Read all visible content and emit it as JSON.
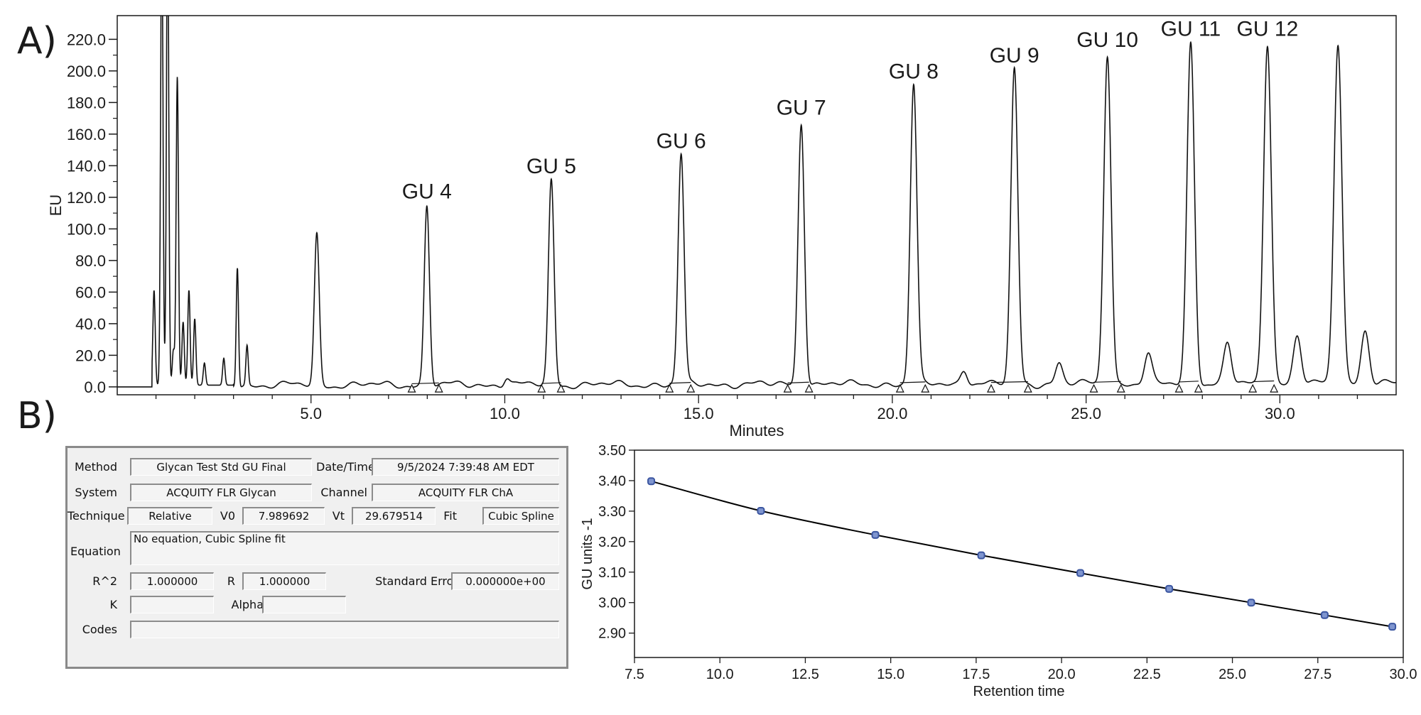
{
  "panels": {
    "a": "A)",
    "b": "B)"
  },
  "chart_data": [
    {
      "type": "line",
      "xlabel": "Minutes",
      "ylabel": "EU",
      "xlim": [
        0,
        33
      ],
      "ylim": [
        -5,
        235
      ],
      "x_ticks": [
        5.0,
        10.0,
        15.0,
        20.0,
        25.0,
        30.0
      ],
      "x_tick_labels": [
        "5.0",
        "10.0",
        "15.0",
        "20.0",
        "25.0",
        "30.0"
      ],
      "y_ticks": [
        0,
        20,
        40,
        60,
        80,
        100,
        120,
        140,
        160,
        180,
        200,
        220
      ],
      "y_tick_labels": [
        "0.0",
        "20.0",
        "40.0",
        "60.0",
        "80.0",
        "100.0",
        "120.0",
        "140.0",
        "160.0",
        "180.0",
        "200.0",
        "220.0"
      ],
      "peaks": [
        {
          "rt": 0.95,
          "height": 60
        },
        {
          "rt": 1.15,
          "height": 300
        },
        {
          "rt": 1.3,
          "height": 300
        },
        {
          "rt": 1.45,
          "height": 22
        },
        {
          "rt": 1.55,
          "height": 195
        },
        {
          "rt": 1.7,
          "height": 40
        },
        {
          "rt": 1.85,
          "height": 60
        },
        {
          "rt": 2.0,
          "height": 42
        },
        {
          "rt": 2.25,
          "height": 14
        },
        {
          "rt": 2.75,
          "height": 17
        },
        {
          "rt": 3.1,
          "height": 76
        },
        {
          "rt": 3.35,
          "height": 25
        },
        {
          "rt": 5.15,
          "height": 95
        },
        {
          "rt": 7.99,
          "height": 113,
          "label": "GU 4"
        },
        {
          "rt": 11.2,
          "height": 129,
          "label": "GU 5"
        },
        {
          "rt": 14.55,
          "height": 145,
          "label": "GU 6"
        },
        {
          "rt": 17.65,
          "height": 166,
          "label": "GU 7"
        },
        {
          "rt": 20.55,
          "height": 189,
          "label": "GU 8"
        },
        {
          "rt": 23.15,
          "height": 199,
          "label": "GU 9"
        },
        {
          "rt": 25.55,
          "height": 209,
          "label": "GU 10"
        },
        {
          "rt": 27.7,
          "height": 216,
          "label": "GU 11"
        },
        {
          "rt": 29.68,
          "height": 216,
          "label": "GU 12"
        },
        {
          "rt": 31.5,
          "height": 216
        },
        {
          "rt": 26.6,
          "height": 18
        },
        {
          "rt": 28.65,
          "height": 25
        },
        {
          "rt": 30.45,
          "height": 30
        },
        {
          "rt": 32.2,
          "height": 34
        },
        {
          "rt": 24.3,
          "height": 13
        },
        {
          "rt": 21.85,
          "height": 10
        },
        {
          "rt": 10.05,
          "height": 5
        }
      ],
      "baseline_markers": [
        7.6,
        8.3,
        10.95,
        11.45,
        14.25,
        14.8,
        17.3,
        17.85,
        20.2,
        20.85,
        22.55,
        23.5,
        25.2,
        25.9,
        27.4,
        27.9,
        29.3,
        29.85
      ]
    },
    {
      "type": "line",
      "xlabel": "Retention time",
      "ylabel": "GU units -1",
      "xlim": [
        7.5,
        30.0
      ],
      "ylim": [
        2.82,
        3.5
      ],
      "x_ticks": [
        7.5,
        10.0,
        12.5,
        15.0,
        17.5,
        20.0,
        22.5,
        25.0,
        27.5,
        30.0
      ],
      "x_tick_labels": [
        "7.5",
        "10.0",
        "12.5",
        "15.0",
        "17.5",
        "20.0",
        "22.5",
        "25.0",
        "27.5",
        "30.0"
      ],
      "y_ticks": [
        2.9,
        3.0,
        3.1,
        3.2,
        3.3,
        3.4,
        3.5
      ],
      "y_tick_labels": [
        "2.90",
        "3.00",
        "3.10",
        "3.20",
        "3.30",
        "3.40",
        "3.50"
      ],
      "series": [
        {
          "x": [
            7.99,
            11.2,
            14.55,
            17.65,
            20.55,
            23.15,
            25.55,
            27.7,
            29.68
          ],
          "y": [
            3.398,
            3.301,
            3.222,
            3.155,
            3.097,
            3.045,
            3.0,
            2.959,
            2.921
          ]
        }
      ],
      "colors": {
        "line": "#000000",
        "marker": "#3a55a0"
      }
    }
  ],
  "info": {
    "method_label": "Method",
    "method_value": "Glycan Test Std GU Final",
    "datetime_label": "Date/Time",
    "datetime_value": "9/5/2024 7:39:48 AM EDT",
    "system_label": "System",
    "system_value": "ACQUITY FLR Glycan",
    "channel_label": "Channel",
    "channel_value": "ACQUITY FLR ChA",
    "technique_label": "Technique",
    "technique_value": "Relative",
    "v0_label": "V0",
    "v0_value": "7.989692",
    "vt_label": "Vt",
    "vt_value": "29.679514",
    "fit_label": "Fit",
    "fit_value": "Cubic Spline",
    "equation_label": "Equation",
    "equation_value": "No equation, Cubic Spline fit",
    "r2_label": "R^2",
    "r2_value": "1.000000",
    "r_label": "R",
    "r_value": "1.000000",
    "stderr_label": "Standard Error",
    "stderr_value": "0.000000e+00",
    "k_label": "K",
    "k_value": "",
    "alpha_label": "Alpha",
    "alpha_value": "",
    "codes_label": "Codes",
    "codes_value": ""
  }
}
